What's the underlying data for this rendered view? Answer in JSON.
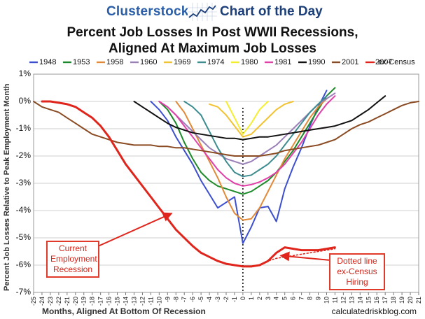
{
  "header": {
    "brand": "Clusterstock",
    "tagline": "Chart of the Day"
  },
  "chart_data": {
    "type": "line",
    "title_lines": [
      "Percent Job Losses In Post WWII Recessions,",
      "Aligned At Maximum Job Losses"
    ],
    "xlabel": "Months, Aligned At Bottom Of Recession",
    "ylabel": "Percent Job Losses Relative to Peak Employment Month",
    "source": "calculatedriskblog.com",
    "xlim": [
      -25,
      21
    ],
    "ylim": [
      -7,
      1
    ],
    "y_tick_labels": [
      "1%",
      "0%",
      "-1%",
      "-2%",
      "-3%",
      "-4%",
      "-5%",
      "-6%",
      "-7%"
    ],
    "x_tick_labels": [
      "-25",
      "-24",
      "-23",
      "-22",
      "-21",
      "-20",
      "-19",
      "-18",
      "-17",
      "-16",
      "-15",
      "-14",
      "-13",
      "-12",
      "-11",
      "-10",
      "-9",
      "-8",
      "-7",
      "-6",
      "-5",
      "-4",
      "-3",
      "-2",
      "-1",
      "0",
      "1",
      "2",
      "3",
      "4",
      "5",
      "6",
      "7",
      "8",
      "9",
      "10",
      "11",
      "12",
      "13",
      "14",
      "15",
      "16",
      "17",
      "18",
      "19",
      "20",
      "21"
    ],
    "vertical_reference_x": 0,
    "legend_placement": "top",
    "series": [
      {
        "name": "1948",
        "color": "#3b4fd0",
        "x": [
          -11,
          -10,
          -9,
          -8,
          -7,
          -6,
          -5,
          -4,
          -3,
          -2,
          -1,
          0,
          1,
          2,
          3,
          4,
          5,
          6,
          7,
          8,
          9,
          10
        ],
        "y": [
          0,
          -0.3,
          -0.7,
          -1.3,
          -1.8,
          -2.3,
          -2.9,
          -3.4,
          -3.9,
          -3.7,
          -3.5,
          -5.2,
          -4.6,
          -3.9,
          -3.85,
          -4.4,
          -3.2,
          -2.4,
          -1.7,
          -0.9,
          -0.2,
          0.4
        ]
      },
      {
        "name": "1953",
        "color": "#1d8a2a",
        "x": [
          -10,
          -9,
          -8,
          -7,
          -6,
          -5,
          -4,
          -3,
          -2,
          -1,
          0,
          1,
          2,
          3,
          4,
          5,
          6,
          7,
          8,
          9,
          10,
          11
        ],
        "y": [
          0,
          -0.3,
          -0.8,
          -1.5,
          -2.1,
          -2.6,
          -2.9,
          -3.1,
          -3.2,
          -3.3,
          -3.4,
          -3.3,
          -3.1,
          -2.9,
          -2.6,
          -2.2,
          -1.8,
          -1.3,
          -0.8,
          -0.3,
          0.2,
          0.5
        ]
      },
      {
        "name": "1958",
        "color": "#e28a38",
        "x": [
          -8,
          -7,
          -6,
          -5,
          -4,
          -3,
          -2,
          -1,
          0,
          1,
          2,
          3,
          4,
          5,
          6,
          7,
          8,
          9,
          10
        ],
        "y": [
          0,
          -0.4,
          -1.0,
          -1.6,
          -2.2,
          -2.8,
          -3.5,
          -4.1,
          -4.35,
          -4.3,
          -3.9,
          -3.3,
          -2.7,
          -2.1,
          -1.6,
          -1.1,
          -0.6,
          -0.2,
          0.1
        ]
      },
      {
        "name": "1960",
        "color": "#9a7fb8",
        "x": [
          -10,
          -9,
          -8,
          -7,
          -6,
          -5,
          -4,
          -3,
          -2,
          -1,
          0,
          1,
          2,
          3,
          4,
          5,
          6,
          7,
          8,
          9,
          10,
          11
        ],
        "y": [
          0,
          -0.2,
          -0.5,
          -0.8,
          -1.1,
          -1.4,
          -1.7,
          -1.9,
          -2.1,
          -2.2,
          -2.3,
          -2.2,
          -2.0,
          -1.8,
          -1.6,
          -1.3,
          -1.0,
          -0.7,
          -0.4,
          -0.1,
          0.1,
          0.3
        ]
      },
      {
        "name": "1969",
        "color": "#f2c230",
        "x": [
          -4,
          -3,
          -2,
          -1,
          0,
          1,
          2,
          3,
          4,
          5,
          6
        ],
        "y": [
          -0.1,
          -0.2,
          -0.5,
          -0.9,
          -1.3,
          -1.2,
          -0.9,
          -0.6,
          -0.3,
          -0.1,
          0
        ]
      },
      {
        "name": "1974",
        "color": "#3c8c90",
        "x": [
          -7,
          -6,
          -5,
          -4,
          -3,
          -2,
          -1,
          0,
          1,
          2,
          3,
          4,
          5,
          6,
          7,
          8,
          9,
          10
        ],
        "y": [
          0,
          -0.2,
          -0.5,
          -1.1,
          -1.7,
          -2.2,
          -2.6,
          -2.75,
          -2.7,
          -2.5,
          -2.3,
          -2.0,
          -1.6,
          -1.2,
          -0.8,
          -0.4,
          -0.1,
          0.2
        ]
      },
      {
        "name": "1980",
        "color": "#f4ee2e",
        "x": [
          -2,
          -1,
          0,
          1,
          2,
          3
        ],
        "y": [
          0,
          -0.6,
          -1.2,
          -0.8,
          -0.3,
          0
        ]
      },
      {
        "name": "1981",
        "color": "#e040a8",
        "x": [
          -10,
          -9,
          -8,
          -7,
          -6,
          -5,
          -4,
          -3,
          -2,
          -1,
          0,
          1,
          2,
          3,
          4,
          5,
          6,
          7,
          8,
          9,
          10,
          11
        ],
        "y": [
          0,
          -0.2,
          -0.5,
          -0.9,
          -1.3,
          -1.7,
          -2.1,
          -2.5,
          -2.8,
          -3.0,
          -3.1,
          -3.05,
          -2.95,
          -2.8,
          -2.6,
          -2.3,
          -1.9,
          -1.5,
          -1.0,
          -0.5,
          -0.1,
          0.2
        ]
      },
      {
        "name": "1990",
        "color": "#111111",
        "x": [
          -13,
          -12,
          -11,
          -10,
          -9,
          -8,
          -7,
          -6,
          -5,
          -4,
          -3,
          -2,
          -1,
          0,
          1,
          2,
          3,
          4,
          5,
          6,
          7,
          8,
          9,
          10,
          11,
          12,
          13,
          14,
          15,
          16,
          17
        ],
        "y": [
          0,
          -0.2,
          -0.4,
          -0.6,
          -0.8,
          -0.95,
          -1.05,
          -1.15,
          -1.2,
          -1.25,
          -1.3,
          -1.35,
          -1.35,
          -1.4,
          -1.35,
          -1.3,
          -1.3,
          -1.25,
          -1.2,
          -1.15,
          -1.1,
          -1.05,
          -1.0,
          -0.95,
          -0.9,
          -0.8,
          -0.7,
          -0.5,
          -0.3,
          -0.05,
          0.2
        ]
      },
      {
        "name": "2001",
        "color": "#8a4a22",
        "x": [
          -25,
          -24,
          -23,
          -22,
          -21,
          -20,
          -19,
          -18,
          -17,
          -16,
          -15,
          -14,
          -13,
          -12,
          -11,
          -10,
          -9,
          -8,
          -7,
          -6,
          -5,
          -4,
          -3,
          -2,
          -1,
          0,
          1,
          2,
          3,
          4,
          5,
          6,
          7,
          8,
          9,
          10,
          11,
          12,
          13,
          14,
          15,
          16,
          17,
          18,
          19,
          20,
          21
        ],
        "y": [
          0,
          -0.2,
          -0.3,
          -0.4,
          -0.6,
          -0.8,
          -1.0,
          -1.2,
          -1.3,
          -1.4,
          -1.5,
          -1.55,
          -1.6,
          -1.6,
          -1.6,
          -1.65,
          -1.65,
          -1.7,
          -1.7,
          -1.75,
          -1.8,
          -1.85,
          -1.9,
          -1.95,
          -2.0,
          -2.0,
          -2.0,
          -2.0,
          -1.95,
          -1.9,
          -1.8,
          -1.75,
          -1.7,
          -1.65,
          -1.6,
          -1.5,
          -1.4,
          -1.2,
          -1.0,
          -0.85,
          -0.75,
          -0.6,
          -0.45,
          -0.3,
          -0.15,
          -0.05,
          0
        ]
      },
      {
        "name": "2007",
        "color": "#e0261c",
        "x": [
          -24,
          -23,
          -22,
          -21,
          -20,
          -19,
          -18,
          -17,
          -16,
          -15,
          -14,
          -13,
          -12,
          -11,
          -10,
          -9,
          -8,
          -7,
          -6,
          -5,
          -4,
          -3,
          -2,
          -1,
          0,
          1,
          2,
          3,
          4,
          5,
          6,
          7,
          8,
          9,
          10,
          11
        ],
        "y": [
          0,
          0,
          -0.05,
          -0.1,
          -0.2,
          -0.4,
          -0.6,
          -0.9,
          -1.3,
          -1.8,
          -2.3,
          -2.7,
          -3.1,
          -3.5,
          -3.9,
          -4.3,
          -4.7,
          -5.0,
          -5.3,
          -5.55,
          -5.7,
          -5.85,
          -5.95,
          -6.0,
          -6.05,
          -6.05,
          -6.0,
          -5.85,
          -5.55,
          -5.35,
          -5.4,
          -5.45,
          -5.45,
          -5.45,
          -5.4,
          -5.35
        ]
      },
      {
        "name": "ex-Census",
        "color": "#e0261c",
        "dashed": true,
        "x": [
          2,
          3,
          4,
          5,
          6,
          7,
          8,
          9,
          10,
          11
        ],
        "y": [
          -6.0,
          -5.85,
          -5.75,
          -5.7,
          -5.65,
          -5.6,
          -5.55,
          -5.5,
          -5.45,
          -5.4
        ]
      }
    ],
    "annotations": [
      {
        "text_lines": [
          "Current",
          "Employment",
          "Recession"
        ],
        "arrow_to": [
          -8.5,
          -4.1
        ]
      },
      {
        "text_lines": [
          "Dotted line",
          "ex-Census",
          "Hiring"
        ],
        "arrow_to": [
          4.5,
          -5.65
        ]
      }
    ]
  }
}
